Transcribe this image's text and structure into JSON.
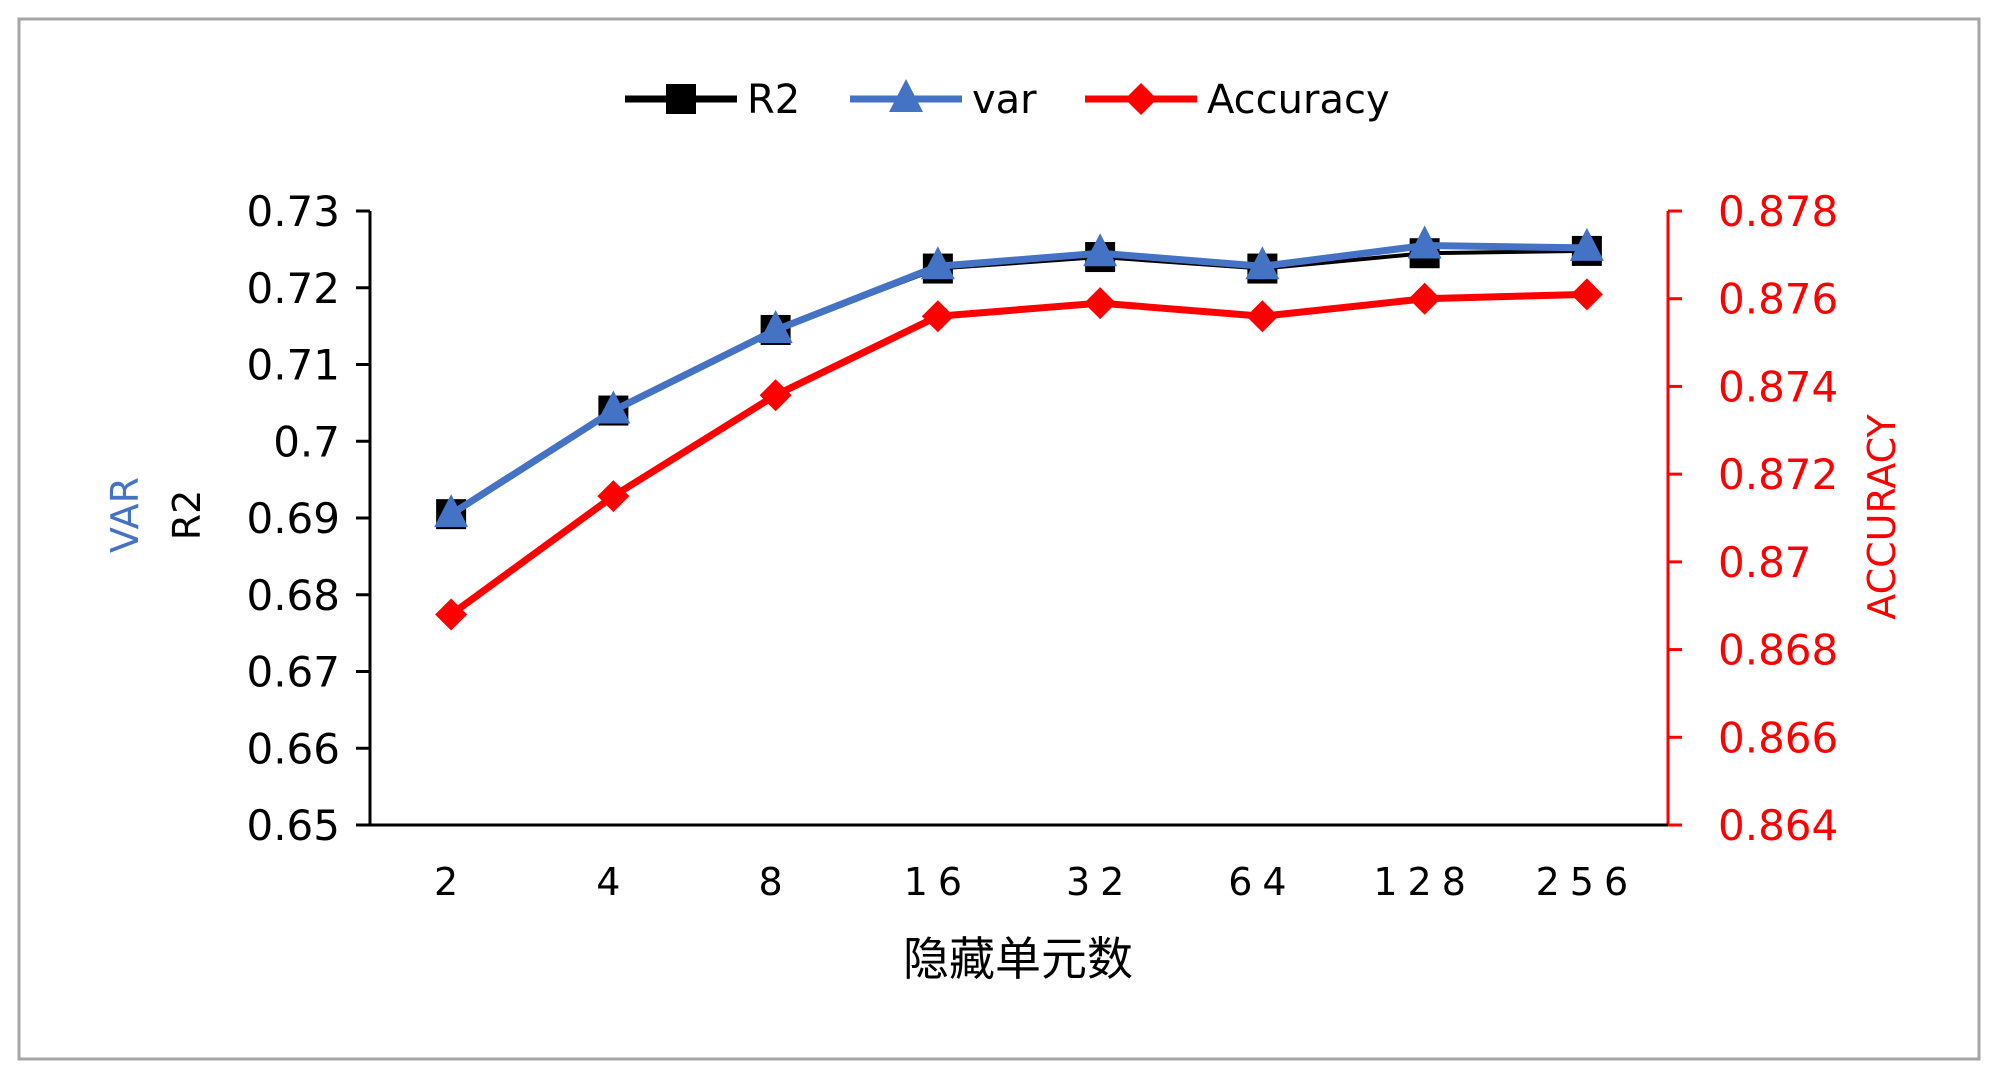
{
  "chart_data": {
    "type": "line",
    "categories": [
      "2",
      "4",
      "8",
      "16",
      "32",
      "64",
      "128",
      "256"
    ],
    "xlabel": "隐藏单元数",
    "ylabel_left": [
      "VAR",
      "R2"
    ],
    "ylabel_right": "ACCURACY",
    "y_left": {
      "range": [
        0.65,
        0.73
      ],
      "ticks": [
        0.65,
        0.66,
        0.67,
        0.68,
        0.69,
        0.7,
        0.71,
        0.72,
        0.73
      ],
      "tick_labels": [
        "0.65",
        "0.66",
        "0.67",
        "0.68",
        "0.69",
        "0.7",
        "0.71",
        "0.72",
        "0.73"
      ]
    },
    "y_right": {
      "range": [
        0.864,
        0.878
      ],
      "ticks": [
        0.864,
        0.866,
        0.868,
        0.87,
        0.872,
        0.874,
        0.876,
        0.878
      ],
      "tick_labels": [
        "0.864",
        "0.866",
        "0.868",
        "0.87",
        "0.872",
        "0.874",
        "0.876",
        "0.878"
      ]
    },
    "series": [
      {
        "name": "R2",
        "axis": "left",
        "marker": "square",
        "color": "#000000",
        "values": [
          0.6905,
          0.704,
          0.7145,
          0.7225,
          0.724,
          0.7225,
          0.7245,
          0.7248
        ]
      },
      {
        "name": "var",
        "axis": "left",
        "marker": "triangle",
        "color": "#4472C4",
        "values": [
          0.6905,
          0.704,
          0.7145,
          0.7228,
          0.7245,
          0.7228,
          0.7255,
          0.7252
        ]
      },
      {
        "name": "Accuracy",
        "axis": "right",
        "marker": "diamond",
        "color": "#FF0000",
        "values": [
          0.8688,
          0.8715,
          0.8738,
          0.8756,
          0.8759,
          0.8756,
          0.876,
          0.8761
        ]
      }
    ],
    "legend_position": "top-center",
    "grid": false,
    "colors": {
      "left_axis": "#000000",
      "right_axis": "#FF0000",
      "var_label": "#4472C4",
      "frame": "#A6A6A6"
    }
  }
}
